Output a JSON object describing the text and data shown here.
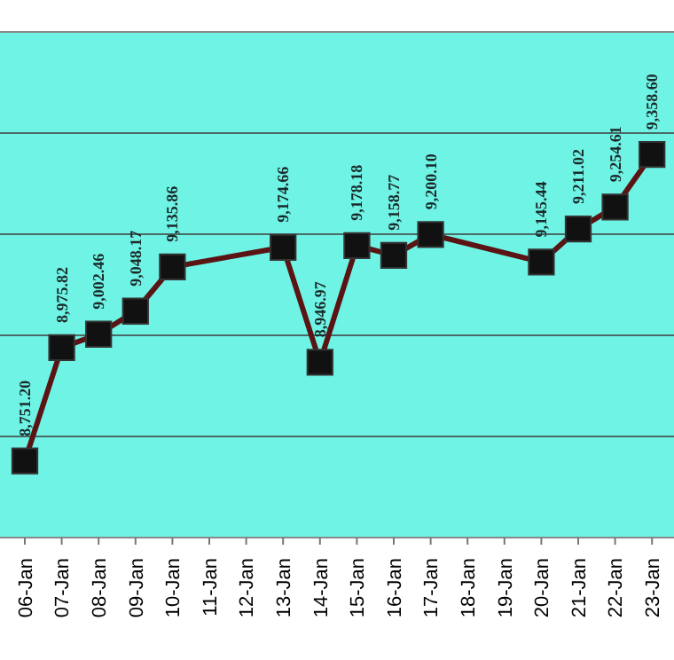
{
  "chart_data": {
    "type": "line",
    "categories": [
      "06-Jan",
      "07-Jan",
      "08-Jan",
      "09-Jan",
      "10-Jan",
      "11-Jan",
      "12-Jan",
      "13-Jan",
      "14-Jan",
      "15-Jan",
      "16-Jan",
      "17-Jan",
      "18-Jan",
      "19-Jan",
      "20-Jan",
      "21-Jan",
      "22-Jan",
      "23-Jan"
    ],
    "series": [
      {
        "color": "#5a1414",
        "values": [
          8751.2,
          8975.82,
          9002.46,
          9048.17,
          9135.86,
          null,
          null,
          9174.66,
          8946.97,
          9178.18,
          9158.77,
          9200.1,
          null,
          null,
          9145.44,
          9211.02,
          9254.61,
          9358.6
        ],
        "value_labels": [
          "8,751.20",
          "8,975.82",
          "9,002.46",
          "9,048.17",
          "9,135.86",
          null,
          null,
          "9,174.66",
          "8,946.97",
          "9,178.18",
          "9,158.77",
          "9,200.10",
          null,
          null,
          "9,145.44",
          "9,211.02",
          "9,254.61",
          "9,358.60"
        ]
      }
    ],
    "tick_labels": "x",
    "grid": "y",
    "marker": "square",
    "line_style": "solid"
  }
}
